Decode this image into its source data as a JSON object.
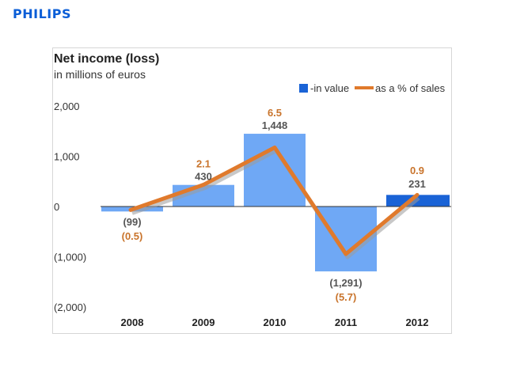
{
  "brand": {
    "logo_text": "PHILIPS",
    "color": "#0b5ed7"
  },
  "chart_data": {
    "type": "bar",
    "title": "Net income (loss)",
    "subtitle": "in millions of euros",
    "categories": [
      "2008",
      "2009",
      "2010",
      "2011",
      "2012"
    ],
    "ylim": [
      -2000,
      2500
    ],
    "yticks": [
      {
        "value": 2000,
        "label": "2,000"
      },
      {
        "value": 1000,
        "label": "1,000"
      },
      {
        "value": 0,
        "label": "0"
      },
      {
        "value": -1000,
        "label": "(1,000)"
      },
      {
        "value": -2000,
        "label": "(2,000)"
      }
    ],
    "legend_position": "top-right",
    "series": [
      {
        "name": "in value",
        "kind": "bar",
        "values": [
          -99,
          430,
          1448,
          -1291,
          231
        ],
        "labels": [
          "(99)",
          "430",
          "1,448",
          "(1,291)",
          "231"
        ],
        "color": "#6fa8f5",
        "highlight_color": "#1a63d6",
        "highlight_index": 4
      },
      {
        "name": "as a % of sales",
        "kind": "line",
        "values": [
          -0.5,
          2.1,
          6.5,
          -5.7,
          0.9
        ],
        "labels": [
          "(0.5)",
          "2.1",
          "6.5",
          "(5.7)",
          "0.9"
        ],
        "color": "#e07a2c"
      }
    ]
  }
}
